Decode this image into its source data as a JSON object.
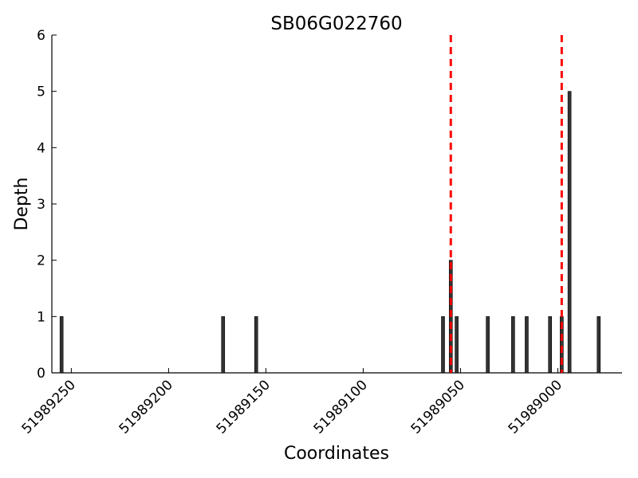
{
  "chart_data": {
    "type": "bar",
    "title": "SB06G022760",
    "xlabel": "Coordinates",
    "ylabel": "Depth",
    "x_reversed": true,
    "xlim": [
      51989260,
      51988967
    ],
    "ylim": [
      0,
      6
    ],
    "xticks": [
      51989250,
      51989200,
      51989150,
      51989100,
      51989050,
      51989000
    ],
    "xtick_labels": [
      "51989250",
      "51989200",
      "51989150",
      "51989100",
      "51989050",
      "51989000"
    ],
    "yticks": [
      0,
      1,
      2,
      3,
      4,
      5,
      6
    ],
    "ytick_labels": [
      "0",
      "1",
      "2",
      "3",
      "4",
      "5",
      "6"
    ],
    "grid": false,
    "series": [
      {
        "x": [
          51989255,
          51989172,
          51989155,
          51989059,
          51989055,
          51989052,
          51989036,
          51989023,
          51989016,
          51989004,
          51988998,
          51988994,
          51988979
        ],
        "values": [
          1,
          1,
          1,
          1,
          2,
          1,
          1,
          1,
          1,
          1,
          1,
          5,
          1
        ],
        "color": "#333333"
      }
    ],
    "reference_lines": [
      {
        "x": 51989055,
        "color": "#ff0000",
        "style": "dashed"
      },
      {
        "x": 51988998,
        "color": "#ff0000",
        "style": "dashed"
      }
    ]
  }
}
